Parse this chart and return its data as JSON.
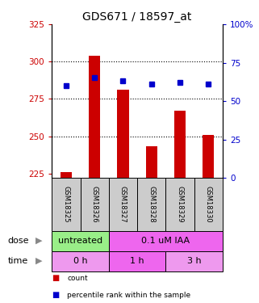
{
  "title": "GDS671 / 18597_at",
  "samples": [
    "GSM18325",
    "GSM18326",
    "GSM18327",
    "GSM18328",
    "GSM18329",
    "GSM18330"
  ],
  "bar_values": [
    226,
    304,
    281,
    243,
    267,
    251
  ],
  "bar_base": 222,
  "dot_values_left": [
    284,
    289,
    287,
    285,
    286,
    285
  ],
  "ylim_left": [
    222,
    325
  ],
  "ylim_right": [
    0,
    100
  ],
  "yticks_left": [
    225,
    250,
    275,
    300,
    325
  ],
  "yticks_right": [
    0,
    25,
    50,
    75,
    100
  ],
  "bar_color": "#cc0000",
  "dot_color": "#0000cc",
  "dose_groups": [
    {
      "label": "untreated",
      "span": [
        0,
        2
      ],
      "color": "#99ee88"
    },
    {
      "label": "0.1 uM IAA",
      "span": [
        2,
        6
      ],
      "color": "#ee66ee"
    }
  ],
  "time_groups": [
    {
      "label": "0 h",
      "span": [
        0,
        2
      ],
      "color": "#ee99ee"
    },
    {
      "label": "1 h",
      "span": [
        2,
        4
      ],
      "color": "#ee66ee"
    },
    {
      "label": "3 h",
      "span": [
        4,
        6
      ],
      "color": "#ee99ee"
    }
  ],
  "dose_label": "dose",
  "time_label": "time",
  "legend_items": [
    {
      "label": "count",
      "color": "#cc0000"
    },
    {
      "label": "percentile rank within the sample",
      "color": "#0000cc"
    }
  ],
  "sample_box_color": "#cccccc",
  "title_fontsize": 10
}
